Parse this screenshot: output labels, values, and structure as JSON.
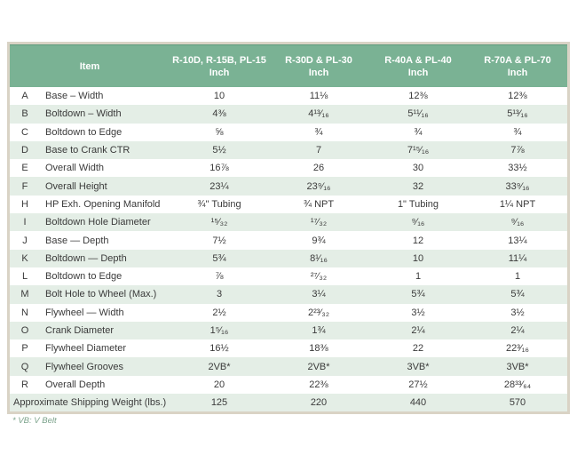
{
  "table": {
    "item_header": "Item",
    "unit_label": "Inch",
    "columns": [
      "R-10D, R-15B, PL-15",
      "R-30D & PL-30",
      "R-40A & PL-40",
      "R-70A & PL-70"
    ],
    "rows": [
      {
        "letter": "A",
        "item": "Base – Width",
        "values": [
          "10",
          "11⅛",
          "12⅜",
          "12⅜"
        ]
      },
      {
        "letter": "B",
        "item": "Boltdown – Width",
        "values": [
          "4⅜",
          "4¹³⁄₁₆",
          "5¹¹⁄₁₆",
          "5¹³⁄₁₆"
        ]
      },
      {
        "letter": "C",
        "item": "Boltdown to Edge",
        "values": [
          "⅝",
          "¾",
          "¾",
          "¾"
        ]
      },
      {
        "letter": "D",
        "item": "Base to Crank CTR",
        "values": [
          "5½",
          "7",
          "7¹⁵⁄₁₆",
          "7⅞"
        ]
      },
      {
        "letter": "E",
        "item": "Overall Width",
        "values": [
          "16⅞",
          "26",
          "30",
          "33½"
        ]
      },
      {
        "letter": "F",
        "item": "Overall Height",
        "values": [
          "23¼",
          "23⁹⁄₁₆",
          "32",
          "33⁹⁄₁₆"
        ]
      },
      {
        "letter": "H",
        "item": "HP Exh. Opening Manifold",
        "values": [
          "¾\" Tubing",
          "¾ NPT",
          "1\" Tubing",
          "1¼ NPT"
        ]
      },
      {
        "letter": "I",
        "item": "Boltdown Hole Diameter",
        "values": [
          "¹⁵⁄₃₂",
          "¹⁷⁄₃₂",
          "⁹⁄₁₆",
          "⁹⁄₁₆"
        ]
      },
      {
        "letter": "J",
        "item": "Base — Depth",
        "values": [
          "7½",
          "9¾",
          "12",
          "13¼"
        ]
      },
      {
        "letter": "K",
        "item": "Boltdown — Depth",
        "values": [
          "5¾",
          "8¹⁄₁₆",
          "10",
          "11¼"
        ]
      },
      {
        "letter": "L",
        "item": "Boltdown to Edge",
        "values": [
          "⅞",
          "²⁷⁄₃₂",
          "1",
          "1"
        ]
      },
      {
        "letter": "M",
        "item": "Bolt Hole to Wheel (Max.)",
        "values": [
          "3",
          "3¼",
          "5¾",
          "5¾"
        ]
      },
      {
        "letter": "N",
        "item": "Flywheel — Width",
        "values": [
          "2½",
          "2²³⁄₃₂",
          "3½",
          "3½"
        ]
      },
      {
        "letter": "O",
        "item": "Crank Diameter",
        "values": [
          "1⁵⁄₁₆",
          "1¾",
          "2¼",
          "2¼"
        ]
      },
      {
        "letter": "P",
        "item": "Flywheel Diameter",
        "values": [
          "16½",
          "18⅜",
          "22",
          "22³⁄₁₆"
        ]
      },
      {
        "letter": "Q",
        "item": "Flywheel Grooves",
        "values": [
          "2VB*",
          "2VB*",
          "3VB*",
          "3VB*"
        ]
      },
      {
        "letter": "R",
        "item": "Overall Depth",
        "values": [
          "20",
          "22⅜",
          "27½",
          "28³³⁄₆₄"
        ]
      }
    ],
    "footer_row": {
      "label": "Approximate Shipping Weight (lbs.)",
      "values": [
        "125",
        "220",
        "440",
        "570"
      ]
    }
  },
  "footnote": "* VB: V Belt",
  "colors": {
    "header_green": "#7ab294",
    "alt_row_green": "#e4eee6",
    "frame_beige": "#d9d3c5",
    "footnote_green": "#7ca38c"
  }
}
